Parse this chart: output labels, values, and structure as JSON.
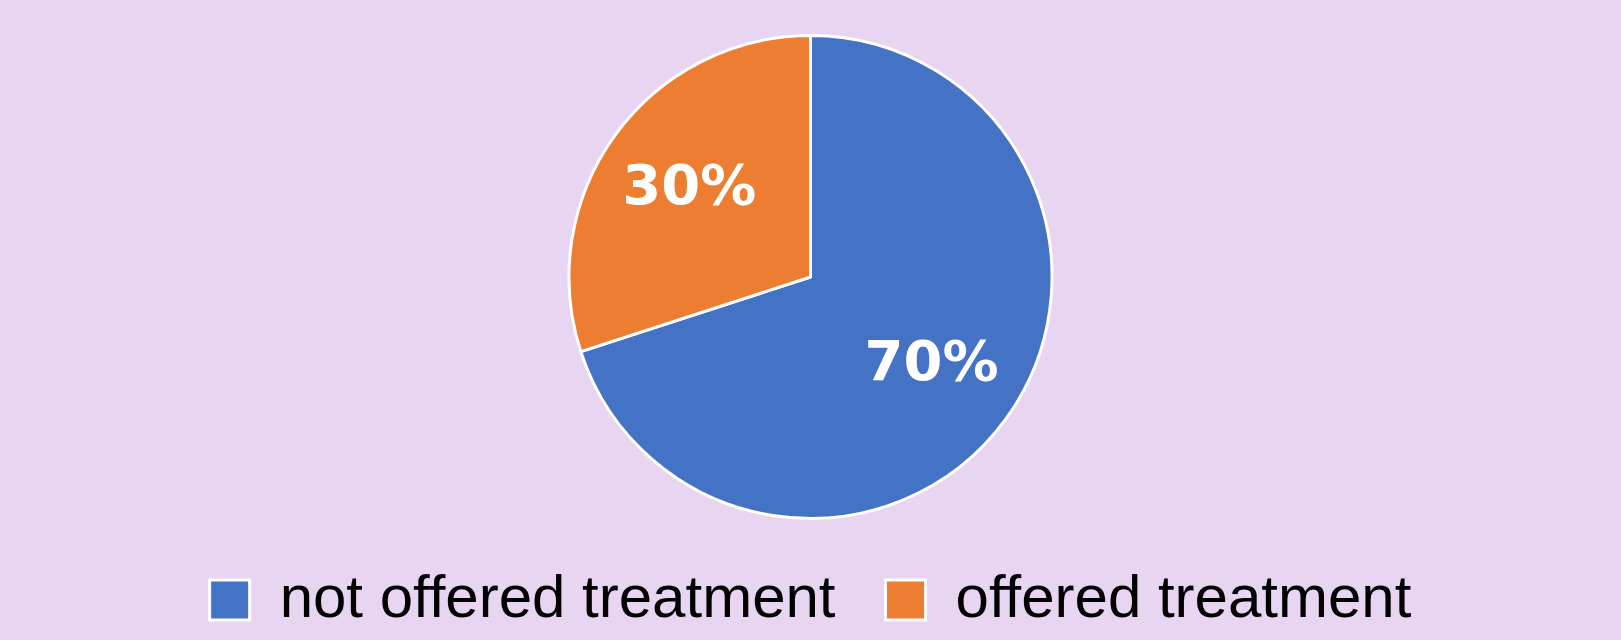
{
  "chart_data": {
    "type": "pie",
    "categories": [
      "not offered treatment",
      "offered treatment"
    ],
    "values": [
      70,
      30
    ],
    "value_labels": [
      "70%",
      "30%"
    ],
    "colors": [
      "#4472c4",
      "#ed7d31"
    ],
    "legend": "bottom"
  }
}
